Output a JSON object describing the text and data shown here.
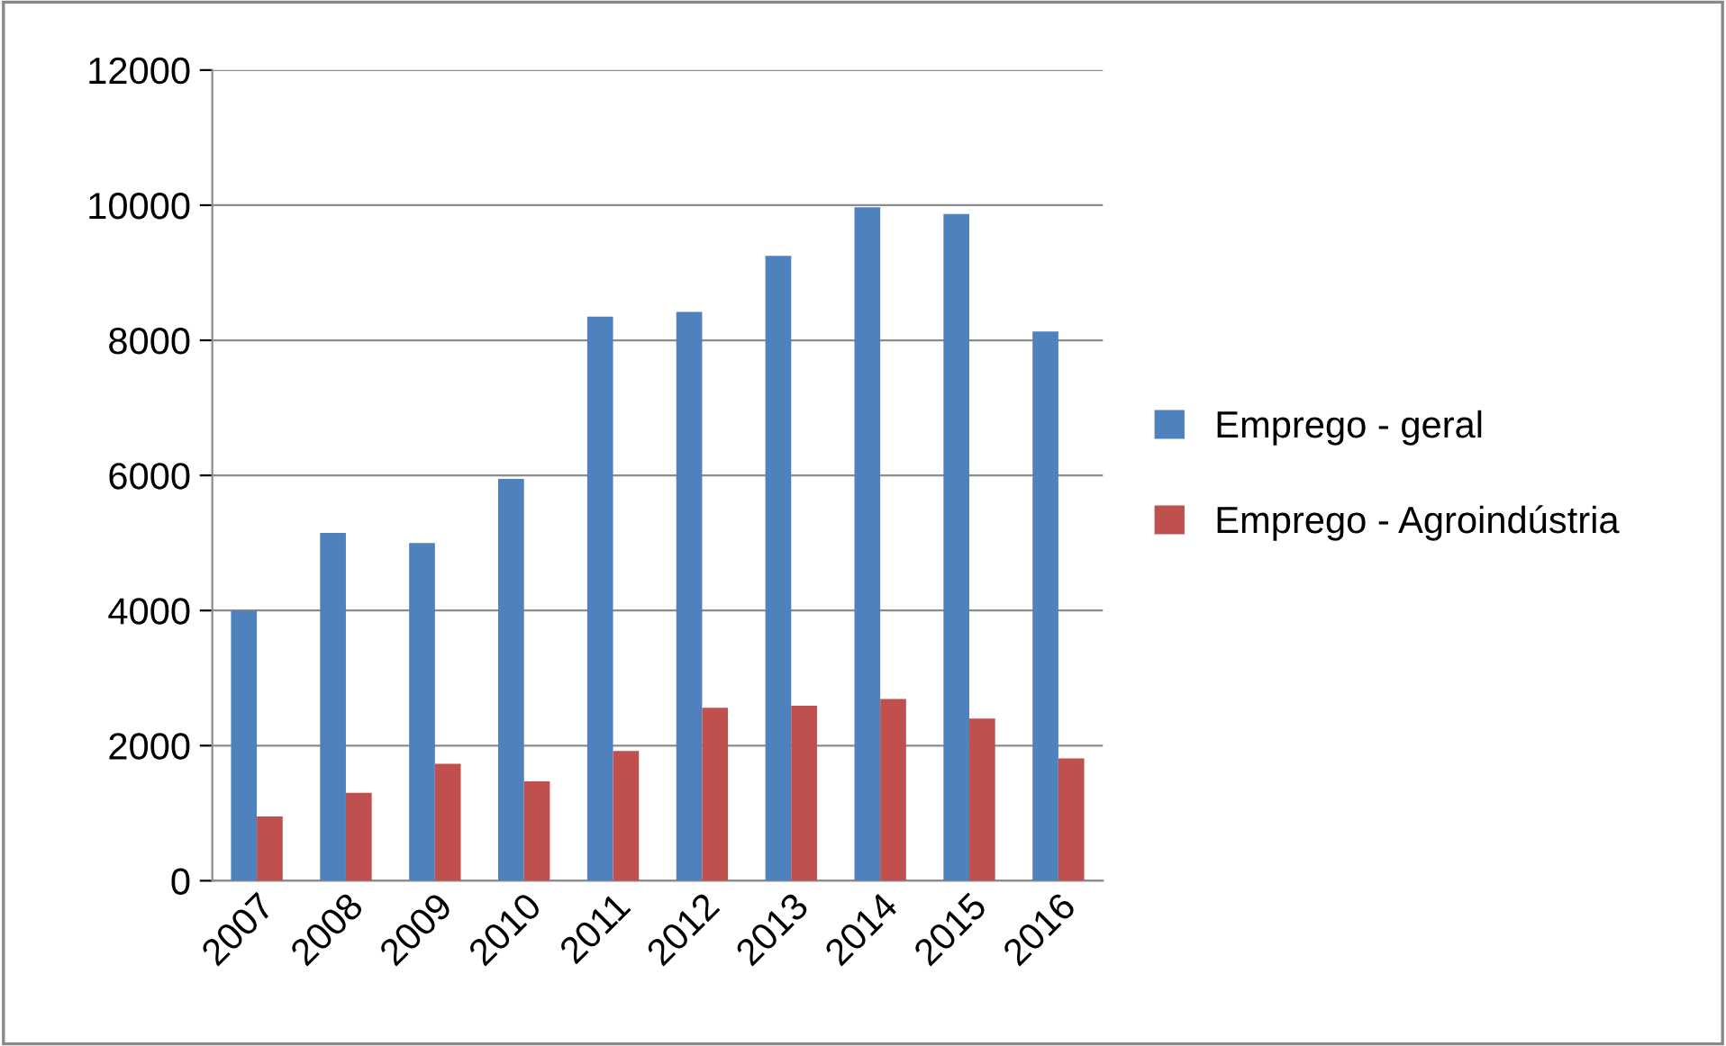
{
  "chart_data": {
    "type": "bar",
    "categories": [
      "2007",
      "2008",
      "2009",
      "2010",
      "2011",
      "2012",
      "2013",
      "2014",
      "2015",
      "2016"
    ],
    "series": [
      {
        "name": "Emprego - geral",
        "color": "#4f81bd",
        "values": [
          4000,
          5150,
          5000,
          5950,
          8350,
          8420,
          9250,
          9970,
          9870,
          8130
        ]
      },
      {
        "name": "Emprego - Agroindústria",
        "color": "#c0504d",
        "values": [
          950,
          1300,
          1730,
          1470,
          1920,
          2560,
          2590,
          2690,
          2400,
          1810
        ]
      }
    ],
    "ylim": [
      0,
      12000
    ],
    "yticks": [
      0,
      2000,
      4000,
      6000,
      8000,
      10000,
      12000
    ],
    "grid": "y",
    "legend": "right"
  }
}
